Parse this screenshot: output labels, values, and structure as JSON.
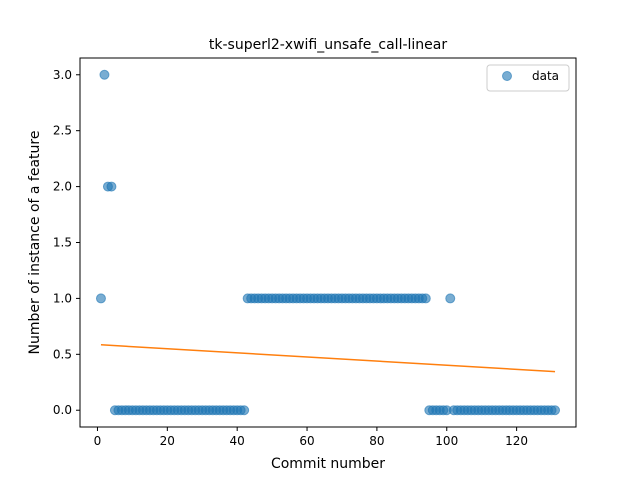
{
  "chart_data": {
    "type": "scatter",
    "title": "tk-superl2-xwifi_unsafe_call-linear",
    "xlabel": "Commit number",
    "ylabel": "Number of instance of a feature",
    "xlim": [
      -5,
      137
    ],
    "ylim": [
      -0.15,
      3.15
    ],
    "xticks": [
      0,
      20,
      40,
      60,
      80,
      100,
      120
    ],
    "yticks": [
      0.0,
      0.5,
      1.0,
      1.5,
      2.0,
      2.5,
      3.0
    ],
    "xtick_labels": [
      "0",
      "20",
      "40",
      "60",
      "80",
      "100",
      "120"
    ],
    "ytick_labels": [
      "0.0",
      "0.5",
      "1.0",
      "1.5",
      "2.0",
      "2.5",
      "3.0"
    ],
    "legend": {
      "placement": "upper-right",
      "entries": [
        "data"
      ]
    },
    "grid": false,
    "colors": {
      "data": "#1f77b4",
      "fit": "#ff7f0e"
    },
    "series": [
      {
        "name": "data",
        "kind": "scatter",
        "x": [
          1,
          2,
          3,
          4,
          5,
          6,
          7,
          8,
          9,
          10,
          11,
          12,
          13,
          14,
          15,
          16,
          17,
          18,
          19,
          20,
          21,
          22,
          23,
          24,
          25,
          26,
          27,
          28,
          29,
          30,
          31,
          32,
          33,
          34,
          35,
          36,
          37,
          38,
          39,
          40,
          41,
          42,
          43,
          44,
          45,
          46,
          47,
          48,
          49,
          50,
          51,
          52,
          53,
          54,
          55,
          56,
          57,
          58,
          59,
          60,
          61,
          62,
          63,
          64,
          65,
          66,
          67,
          68,
          69,
          70,
          71,
          72,
          73,
          74,
          75,
          76,
          77,
          78,
          79,
          80,
          81,
          82,
          83,
          84,
          85,
          86,
          87,
          88,
          89,
          90,
          91,
          92,
          93,
          94,
          95,
          96,
          97,
          98,
          99,
          100,
          101,
          102,
          103,
          104,
          105,
          106,
          107,
          108,
          109,
          110,
          111,
          112,
          113,
          114,
          115,
          116,
          117,
          118,
          119,
          120,
          121,
          122,
          123,
          124,
          125,
          126,
          127,
          128,
          129,
          130,
          131
        ],
        "y": [
          1,
          3,
          2,
          2,
          0,
          0,
          0,
          0,
          0,
          0,
          0,
          0,
          0,
          0,
          0,
          0,
          0,
          0,
          0,
          0,
          0,
          0,
          0,
          0,
          0,
          0,
          0,
          0,
          0,
          0,
          0,
          0,
          0,
          0,
          0,
          0,
          0,
          0,
          0,
          0,
          0,
          0,
          1,
          1,
          1,
          1,
          1,
          1,
          1,
          1,
          1,
          1,
          1,
          1,
          1,
          1,
          1,
          1,
          1,
          1,
          1,
          1,
          1,
          1,
          1,
          1,
          1,
          1,
          1,
          1,
          1,
          1,
          1,
          1,
          1,
          1,
          1,
          1,
          1,
          1,
          1,
          1,
          1,
          1,
          1,
          1,
          1,
          1,
          1,
          1,
          1,
          1,
          1,
          1,
          0,
          0,
          0,
          0,
          0,
          0,
          1,
          0,
          0,
          0,
          0,
          0,
          0,
          0,
          0,
          0,
          0,
          0,
          0,
          0,
          0,
          0,
          0,
          0,
          0,
          0,
          0,
          0,
          0,
          0,
          0,
          0,
          0,
          0,
          0,
          0,
          0
        ]
      },
      {
        "name": "",
        "kind": "line",
        "x": [
          1,
          131
        ],
        "y": [
          0.585,
          0.345
        ]
      }
    ]
  }
}
